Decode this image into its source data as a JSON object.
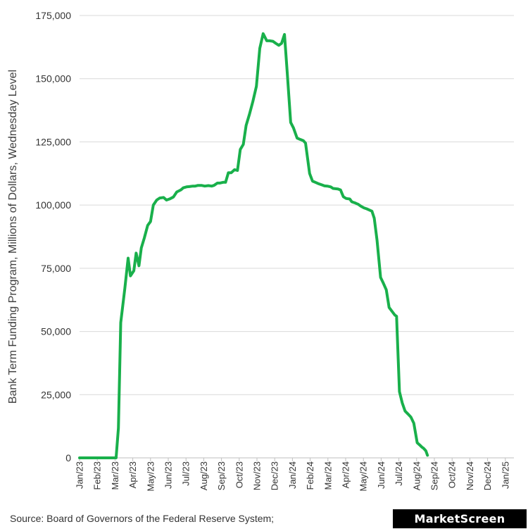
{
  "chart_data": {
    "type": "line",
    "title": "",
    "xlabel": "",
    "ylabel": "Bank Term Funding Program, Millions of Dollars, Wednesday Level",
    "ylim": [
      0,
      175000
    ],
    "yticks": [
      0,
      25000,
      50000,
      75000,
      100000,
      125000,
      150000,
      175000
    ],
    "ytick_labels": [
      "0",
      "25,000",
      "50,000",
      "75,000",
      "100,000",
      "125,000",
      "150,000",
      "175,000"
    ],
    "x_tick_labels": [
      "Jan/23",
      "Feb/23",
      "Mar/23",
      "Apr/23",
      "May/23",
      "Jun/23",
      "Jul/23",
      "Aug/23",
      "Sep/23",
      "Oct/23",
      "Nov/23",
      "Dec/23",
      "Jan/24",
      "Feb/24",
      "Mar/24",
      "Apr/24",
      "May/24",
      "Jun/24",
      "Jul/24",
      "Aug/24",
      "Sep/24",
      "Oct/24",
      "Nov/24",
      "Dec/24",
      "Jan/25"
    ],
    "x_unit": "months since Jan/23",
    "grid": true,
    "line_color": "#19b04b",
    "series": [
      {
        "name": "Bank Term Funding Program",
        "points": [
          [
            0.0,
            0
          ],
          [
            1.0,
            0
          ],
          [
            1.97,
            0
          ],
          [
            2.06,
            0
          ],
          [
            2.19,
            11800
          ],
          [
            2.32,
            53500
          ],
          [
            2.55,
            67000
          ],
          [
            2.74,
            79000
          ],
          [
            2.87,
            72000
          ],
          [
            3.06,
            74000
          ],
          [
            3.19,
            81000
          ],
          [
            3.35,
            76000
          ],
          [
            3.48,
            83000
          ],
          [
            3.65,
            87000
          ],
          [
            3.84,
            92000
          ],
          [
            4.0,
            93500
          ],
          [
            4.16,
            100000
          ],
          [
            4.35,
            102000
          ],
          [
            4.52,
            102800
          ],
          [
            4.74,
            103000
          ],
          [
            4.9,
            102000
          ],
          [
            5.1,
            102500
          ],
          [
            5.29,
            103200
          ],
          [
            5.48,
            105200
          ],
          [
            5.71,
            106000
          ],
          [
            5.84,
            106800
          ],
          [
            6.03,
            107200
          ],
          [
            6.19,
            107300
          ],
          [
            6.39,
            107500
          ],
          [
            6.52,
            107500
          ],
          [
            6.68,
            107800
          ],
          [
            6.87,
            107800
          ],
          [
            7.06,
            107500
          ],
          [
            7.26,
            107700
          ],
          [
            7.45,
            107500
          ],
          [
            7.58,
            107800
          ],
          [
            7.77,
            108700
          ],
          [
            7.9,
            108700
          ],
          [
            8.1,
            109000
          ],
          [
            8.23,
            109000
          ],
          [
            8.39,
            112800
          ],
          [
            8.55,
            112800
          ],
          [
            8.74,
            114000
          ],
          [
            8.9,
            113700
          ],
          [
            9.06,
            122000
          ],
          [
            9.23,
            124000
          ],
          [
            9.39,
            131500
          ],
          [
            9.58,
            136000
          ],
          [
            9.77,
            141000
          ],
          [
            9.97,
            147000
          ],
          [
            10.16,
            162000
          ],
          [
            10.35,
            167800
          ],
          [
            10.55,
            165000
          ],
          [
            10.71,
            165000
          ],
          [
            10.9,
            164800
          ],
          [
            11.06,
            164000
          ],
          [
            11.23,
            163200
          ],
          [
            11.39,
            164000
          ],
          [
            11.55,
            167500
          ],
          [
            11.71,
            152000
          ],
          [
            11.9,
            132700
          ],
          [
            12.06,
            130500
          ],
          [
            12.26,
            126500
          ],
          [
            12.42,
            126000
          ],
          [
            12.61,
            125500
          ],
          [
            12.74,
            124500
          ],
          [
            12.97,
            112500
          ],
          [
            13.13,
            109500
          ],
          [
            13.29,
            109000
          ],
          [
            13.45,
            108500
          ],
          [
            13.65,
            108000
          ],
          [
            13.81,
            107600
          ],
          [
            13.97,
            107500
          ],
          [
            14.16,
            107200
          ],
          [
            14.29,
            106600
          ],
          [
            14.55,
            106400
          ],
          [
            14.71,
            106000
          ],
          [
            14.87,
            103300
          ],
          [
            15.03,
            102600
          ],
          [
            15.23,
            102400
          ],
          [
            15.35,
            101300
          ],
          [
            15.55,
            100800
          ],
          [
            15.71,
            100300
          ],
          [
            15.87,
            99500
          ],
          [
            16.03,
            98900
          ],
          [
            16.19,
            98500
          ],
          [
            16.35,
            98000
          ],
          [
            16.48,
            97600
          ],
          [
            16.61,
            94800
          ],
          [
            16.77,
            86000
          ],
          [
            16.97,
            71400
          ],
          [
            17.13,
            69000
          ],
          [
            17.29,
            66500
          ],
          [
            17.45,
            59500
          ],
          [
            17.61,
            58000
          ],
          [
            17.77,
            56500
          ],
          [
            17.87,
            56000
          ],
          [
            18.03,
            26200
          ],
          [
            18.19,
            21700
          ],
          [
            18.35,
            18500
          ],
          [
            18.52,
            17300
          ],
          [
            18.68,
            16100
          ],
          [
            18.84,
            13700
          ],
          [
            19.03,
            6000
          ],
          [
            19.19,
            5000
          ],
          [
            19.29,
            4300
          ],
          [
            19.39,
            3800
          ],
          [
            19.52,
            2800
          ],
          [
            19.61,
            1000
          ]
        ]
      }
    ]
  },
  "source_text": "Source: Board of Governors of the Federal Reserve System;",
  "brand": "MarketScreen"
}
